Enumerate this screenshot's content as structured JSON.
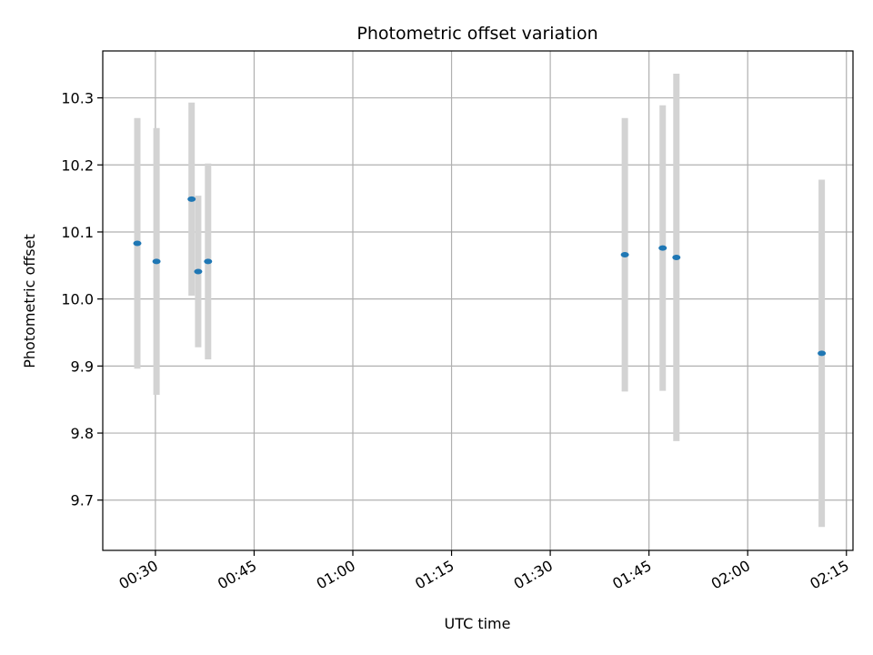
{
  "chart_data": {
    "type": "scatter",
    "title": "Photometric offset variation",
    "xlabel": "UTC time",
    "ylabel": "Photometric offset",
    "x_axis_kind": "time (HH:MM)",
    "xlim": [
      "00:22:00",
      "02:16:00"
    ],
    "ylim": [
      9.625,
      10.37
    ],
    "x_ticks": [
      "00:30",
      "00:45",
      "01:00",
      "01:15",
      "01:30",
      "01:45",
      "02:00",
      "02:15"
    ],
    "y_ticks": [
      9.7,
      9.8,
      9.9,
      10.0,
      10.1,
      10.2,
      10.3
    ],
    "y_tick_labels": [
      "9.7",
      "9.8",
      "9.9",
      "10.0",
      "10.1",
      "10.2",
      "10.3"
    ],
    "grid": true,
    "colors": {
      "point": "#1f77b4",
      "errorbar": "#d3d3d3",
      "grid": "#b0b0b0"
    },
    "series": [
      {
        "points": [
          {
            "x": "00:27:15",
            "y": 10.083,
            "err": 0.187
          },
          {
            "x": "00:30:10",
            "y": 10.056,
            "err": 0.199
          },
          {
            "x": "00:35:30",
            "y": 10.149,
            "err": 0.144
          },
          {
            "x": "00:36:30",
            "y": 10.041,
            "err": 0.113
          },
          {
            "x": "00:38:00",
            "y": 10.056,
            "err": 0.146
          },
          {
            "x": "01:41:20",
            "y": 10.066,
            "err": 0.204
          },
          {
            "x": "01:47:05",
            "y": 10.076,
            "err": 0.213
          },
          {
            "x": "01:49:10",
            "y": 10.062,
            "err": 0.274
          },
          {
            "x": "02:11:15",
            "y": 9.919,
            "err": 0.259
          }
        ]
      }
    ]
  }
}
